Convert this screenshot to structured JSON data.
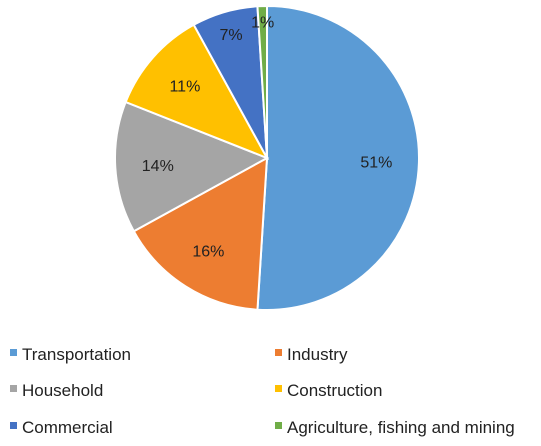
{
  "chart_data": {
    "type": "pie",
    "title": "",
    "series": [
      {
        "values": [
          51,
          16,
          14,
          11,
          7,
          1
        ],
        "labels": [
          "51%",
          "16%",
          "14%",
          "11%",
          "7%",
          "1%"
        ]
      }
    ],
    "categories": [
      "Transportation",
      "Industry",
      "Household",
      "Construction",
      "Commercial",
      "Agriculture, fishing and mining"
    ],
    "colors": [
      "#5b9bd5",
      "#ed7d31",
      "#a5a5a5",
      "#ffc000",
      "#4472c4",
      "#70ad47"
    ],
    "legend_position": "bottom",
    "start_angle": "12 o'clock",
    "direction": "clockwise"
  }
}
